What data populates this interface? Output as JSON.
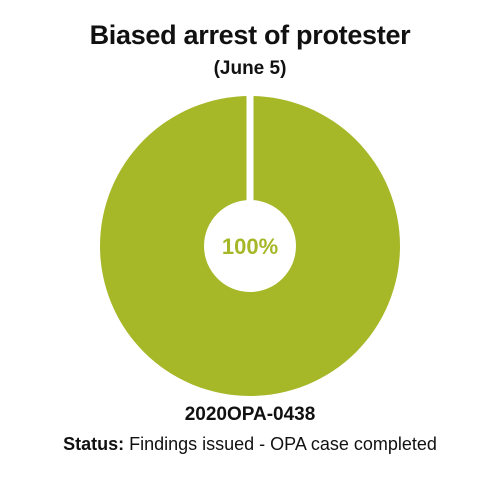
{
  "chart_data": {
    "type": "pie",
    "title": "Biased arrest of protester",
    "subtitle": "(June 5)",
    "slices": [
      {
        "value": 100,
        "color": "#a6b727"
      }
    ],
    "center_label": "100%",
    "center_label_color": "#a6b727",
    "background_color": "#ffffff"
  },
  "case": {
    "id": "2020OPA-0438",
    "status_label": "Status:",
    "status_text": " Findings issued - OPA case completed"
  }
}
